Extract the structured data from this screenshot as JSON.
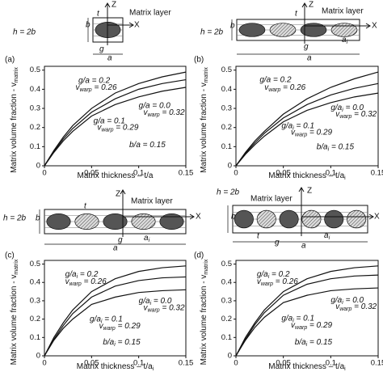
{
  "chart_data": [
    {
      "type": "line",
      "panel": "(a)",
      "x_label": [
        {
          "text": "Matrix thickness – t/a"
        }
      ],
      "y_label": [
        {
          "text": "Matrix volume fraction - v"
        },
        {
          "text": "matrix",
          "sub": true
        }
      ],
      "x": [
        0,
        0.01,
        0.02,
        0.03,
        0.05,
        0.075,
        0.1,
        0.125,
        0.15
      ],
      "xlim": [
        0,
        0.15
      ],
      "xticks": [
        0,
        0.05,
        0.1,
        0.15
      ],
      "ylim": [
        0,
        0.52
      ],
      "yticks": [
        0,
        0.1,
        0.2,
        0.3,
        0.4,
        0.5
      ],
      "series": [
        {
          "color": "#111111",
          "values": [
            0,
            0.08,
            0.15,
            0.21,
            0.3,
            0.38,
            0.43,
            0.465,
            0.49
          ]
        },
        {
          "color": "#111111",
          "values": [
            0,
            0.075,
            0.14,
            0.195,
            0.28,
            0.35,
            0.4,
            0.43,
            0.45
          ]
        },
        {
          "color": "#111111",
          "values": [
            0,
            0.07,
            0.13,
            0.18,
            0.26,
            0.32,
            0.36,
            0.39,
            0.41
          ]
        }
      ],
      "annotations": [
        [
          {
            "text": "g/a = 0.2"
          }
        ],
        [
          {
            "text": "v"
          },
          {
            "text": "warp",
            "sub": true
          },
          {
            "text": " = 0.26"
          }
        ],
        [
          {
            "text": "g/a = 0.0"
          }
        ],
        [
          {
            "text": "v"
          },
          {
            "text": "warp",
            "sub": true
          },
          {
            "text": " = 0.32"
          }
        ],
        [
          {
            "text": "g/a = 0.1"
          }
        ],
        [
          {
            "text": "v"
          },
          {
            "text": "warp",
            "sub": true
          },
          {
            "text": " = 0.29"
          }
        ],
        [
          {
            "text": "b/a = 0.15"
          }
        ]
      ]
    },
    {
      "type": "line",
      "panel": "(b)",
      "x_label": [
        {
          "text": "Matrix thickness – t/a"
        },
        {
          "text": "i",
          "sub": true
        }
      ],
      "y_label": [
        {
          "text": "Matrix volume fraction - v"
        },
        {
          "text": "matrix",
          "sub": true
        }
      ],
      "x": [
        0,
        0.01,
        0.02,
        0.03,
        0.05,
        0.075,
        0.1,
        0.125,
        0.15
      ],
      "xlim": [
        0,
        0.15
      ],
      "xticks": [
        0,
        0.05,
        0.1,
        0.15
      ],
      "ylim": [
        0,
        0.52
      ],
      "yticks": [
        0,
        0.1,
        0.2,
        0.3,
        0.4,
        0.5
      ],
      "series": [
        {
          "color": "#111111",
          "values": [
            0,
            0.07,
            0.13,
            0.18,
            0.27,
            0.35,
            0.41,
            0.455,
            0.49
          ]
        },
        {
          "color": "#111111",
          "values": [
            0,
            0.065,
            0.12,
            0.17,
            0.25,
            0.32,
            0.37,
            0.405,
            0.43
          ]
        },
        {
          "color": "#111111",
          "values": [
            0,
            0.06,
            0.11,
            0.155,
            0.23,
            0.29,
            0.33,
            0.36,
            0.38
          ]
        }
      ],
      "annotations": [
        [
          {
            "text": "g/a = 0.2"
          }
        ],
        [
          {
            "text": "v"
          },
          {
            "text": "warp",
            "sub": true
          },
          {
            "text": " = 0.26"
          }
        ],
        [
          {
            "text": "g/a"
          },
          {
            "text": "i",
            "sub": true
          },
          {
            "text": " = 0.0"
          }
        ],
        [
          {
            "text": "v"
          },
          {
            "text": "warp",
            "sub": true
          },
          {
            "text": " = 0.32"
          }
        ],
        [
          {
            "text": "g/a"
          },
          {
            "text": "i",
            "sub": true
          },
          {
            "text": " = 0.1"
          }
        ],
        [
          {
            "text": "v"
          },
          {
            "text": "warp",
            "sub": true
          },
          {
            "text": " = 0.29"
          }
        ],
        [
          {
            "text": "b/a"
          },
          {
            "text": "i",
            "sub": true
          },
          {
            "text": " = 0.15"
          }
        ]
      ]
    },
    {
      "type": "line",
      "panel": "(c)",
      "x_label": [
        {
          "text": "Matrix thickness – t/a"
        },
        {
          "text": "i",
          "sub": true
        }
      ],
      "y_label": [
        {
          "text": "Matrix volume fraction - v"
        },
        {
          "text": "matrix",
          "sub": true
        }
      ],
      "x": [
        0,
        0.01,
        0.02,
        0.03,
        0.05,
        0.075,
        0.1,
        0.125,
        0.15
      ],
      "xlim": [
        0,
        0.15
      ],
      "xticks": [
        0,
        0.05,
        0.1,
        0.15
      ],
      "ylim": [
        0,
        0.52
      ],
      "yticks": [
        0,
        0.1,
        0.2,
        0.3,
        0.4,
        0.5
      ],
      "series": [
        {
          "color": "#111111",
          "values": [
            0,
            0.1,
            0.18,
            0.25,
            0.35,
            0.42,
            0.46,
            0.48,
            0.49
          ]
        },
        {
          "color": "#111111",
          "values": [
            0,
            0.09,
            0.165,
            0.23,
            0.32,
            0.38,
            0.41,
            0.425,
            0.43
          ]
        },
        {
          "color": "#111111",
          "values": [
            0,
            0.085,
            0.15,
            0.2,
            0.28,
            0.32,
            0.345,
            0.355,
            0.36
          ]
        }
      ],
      "annotations": [
        [
          {
            "text": "g/a"
          },
          {
            "text": "i",
            "sub": true
          },
          {
            "text": " = 0.2"
          }
        ],
        [
          {
            "text": "v"
          },
          {
            "text": "warp",
            "sub": true
          },
          {
            "text": " = 0.26"
          }
        ],
        [
          {
            "text": "g/a"
          },
          {
            "text": "i",
            "sub": true
          },
          {
            "text": " = 0.0"
          }
        ],
        [
          {
            "text": "v"
          },
          {
            "text": "warp",
            "sub": true
          },
          {
            "text": " = 0.32"
          }
        ],
        [
          {
            "text": "g/a"
          },
          {
            "text": "i",
            "sub": true
          },
          {
            "text": " = 0.1"
          }
        ],
        [
          {
            "text": "v"
          },
          {
            "text": "warp",
            "sub": true
          },
          {
            "text": " = 0.29"
          }
        ],
        [
          {
            "text": "b/a"
          },
          {
            "text": "i",
            "sub": true
          },
          {
            "text": " = 0.15"
          }
        ]
      ]
    },
    {
      "type": "line",
      "panel": "(d)",
      "x_label": [
        {
          "text": "Matrix thickness – t/a"
        },
        {
          "text": "i",
          "sub": true
        }
      ],
      "y_label": [
        {
          "text": "Matrix volume fraction - v"
        },
        {
          "text": "matrix",
          "sub": true
        }
      ],
      "x": [
        0,
        0.01,
        0.02,
        0.03,
        0.05,
        0.075,
        0.1,
        0.125,
        0.15
      ],
      "xlim": [
        0,
        0.15
      ],
      "xticks": [
        0,
        0.05,
        0.1,
        0.15
      ],
      "ylim": [
        0,
        0.52
      ],
      "yticks": [
        0,
        0.1,
        0.2,
        0.3,
        0.4,
        0.5
      ],
      "series": [
        {
          "color": "#111111",
          "values": [
            0,
            0.1,
            0.18,
            0.25,
            0.35,
            0.42,
            0.46,
            0.48,
            0.49
          ]
        },
        {
          "color": "#111111",
          "values": [
            0,
            0.09,
            0.17,
            0.235,
            0.33,
            0.39,
            0.42,
            0.435,
            0.44
          ]
        },
        {
          "color": "#111111",
          "values": [
            0,
            0.085,
            0.155,
            0.21,
            0.29,
            0.33,
            0.355,
            0.365,
            0.37
          ]
        }
      ],
      "annotations": [
        [
          {
            "text": "g/a"
          },
          {
            "text": "i",
            "sub": true
          },
          {
            "text": " = 0.2"
          }
        ],
        [
          {
            "text": "v"
          },
          {
            "text": "warp",
            "sub": true
          },
          {
            "text": " = 0.26"
          }
        ],
        [
          {
            "text": "g/a"
          },
          {
            "text": "i",
            "sub": true
          },
          {
            "text": " = 0.0"
          }
        ],
        [
          {
            "text": "v"
          },
          {
            "text": "warp",
            "sub": true
          },
          {
            "text": " = 0.32"
          }
        ],
        [
          {
            "text": "g/a"
          },
          {
            "text": "i",
            "sub": true
          },
          {
            "text": " = 0.1"
          }
        ],
        [
          {
            "text": "v"
          },
          {
            "text": "warp",
            "sub": true
          },
          {
            "text": " = 0.29"
          }
        ],
        [
          {
            "text": "b/a"
          },
          {
            "text": "i",
            "sub": true
          },
          {
            "text": " = 0.15"
          }
        ]
      ]
    }
  ],
  "diagrams": [
    {
      "z": "Z",
      "x": "X",
      "matrix_layer": "Matrix layer",
      "h": "h = 2b",
      "b": "b",
      "t": "t",
      "g": "g",
      "a": "a"
    },
    {
      "z": "Z",
      "x": "X",
      "matrix_layer": "Matrix layer",
      "h": "h = 2b",
      "b": "b",
      "t": "t",
      "g": "g",
      "a": "a",
      "a_i": [
        {
          "text": "a"
        },
        {
          "text": "i",
          "sub": true
        }
      ]
    },
    {
      "z": "Z",
      "x": "X",
      "matrix_layer": "Matrix layer",
      "h": "h = 2b",
      "b": "b",
      "t": "t",
      "g": "g",
      "a": "a",
      "a_i": [
        {
          "text": "a"
        },
        {
          "text": "i",
          "sub": true
        }
      ]
    },
    {
      "z": "Z",
      "x": "X",
      "matrix_layer": "Matrix layer",
      "h": "h = 2b",
      "b": "b",
      "t": "t",
      "g": "g",
      "a": "a",
      "a_i": [
        {
          "text": "a"
        },
        {
          "text": "i",
          "sub": true
        }
      ]
    }
  ]
}
